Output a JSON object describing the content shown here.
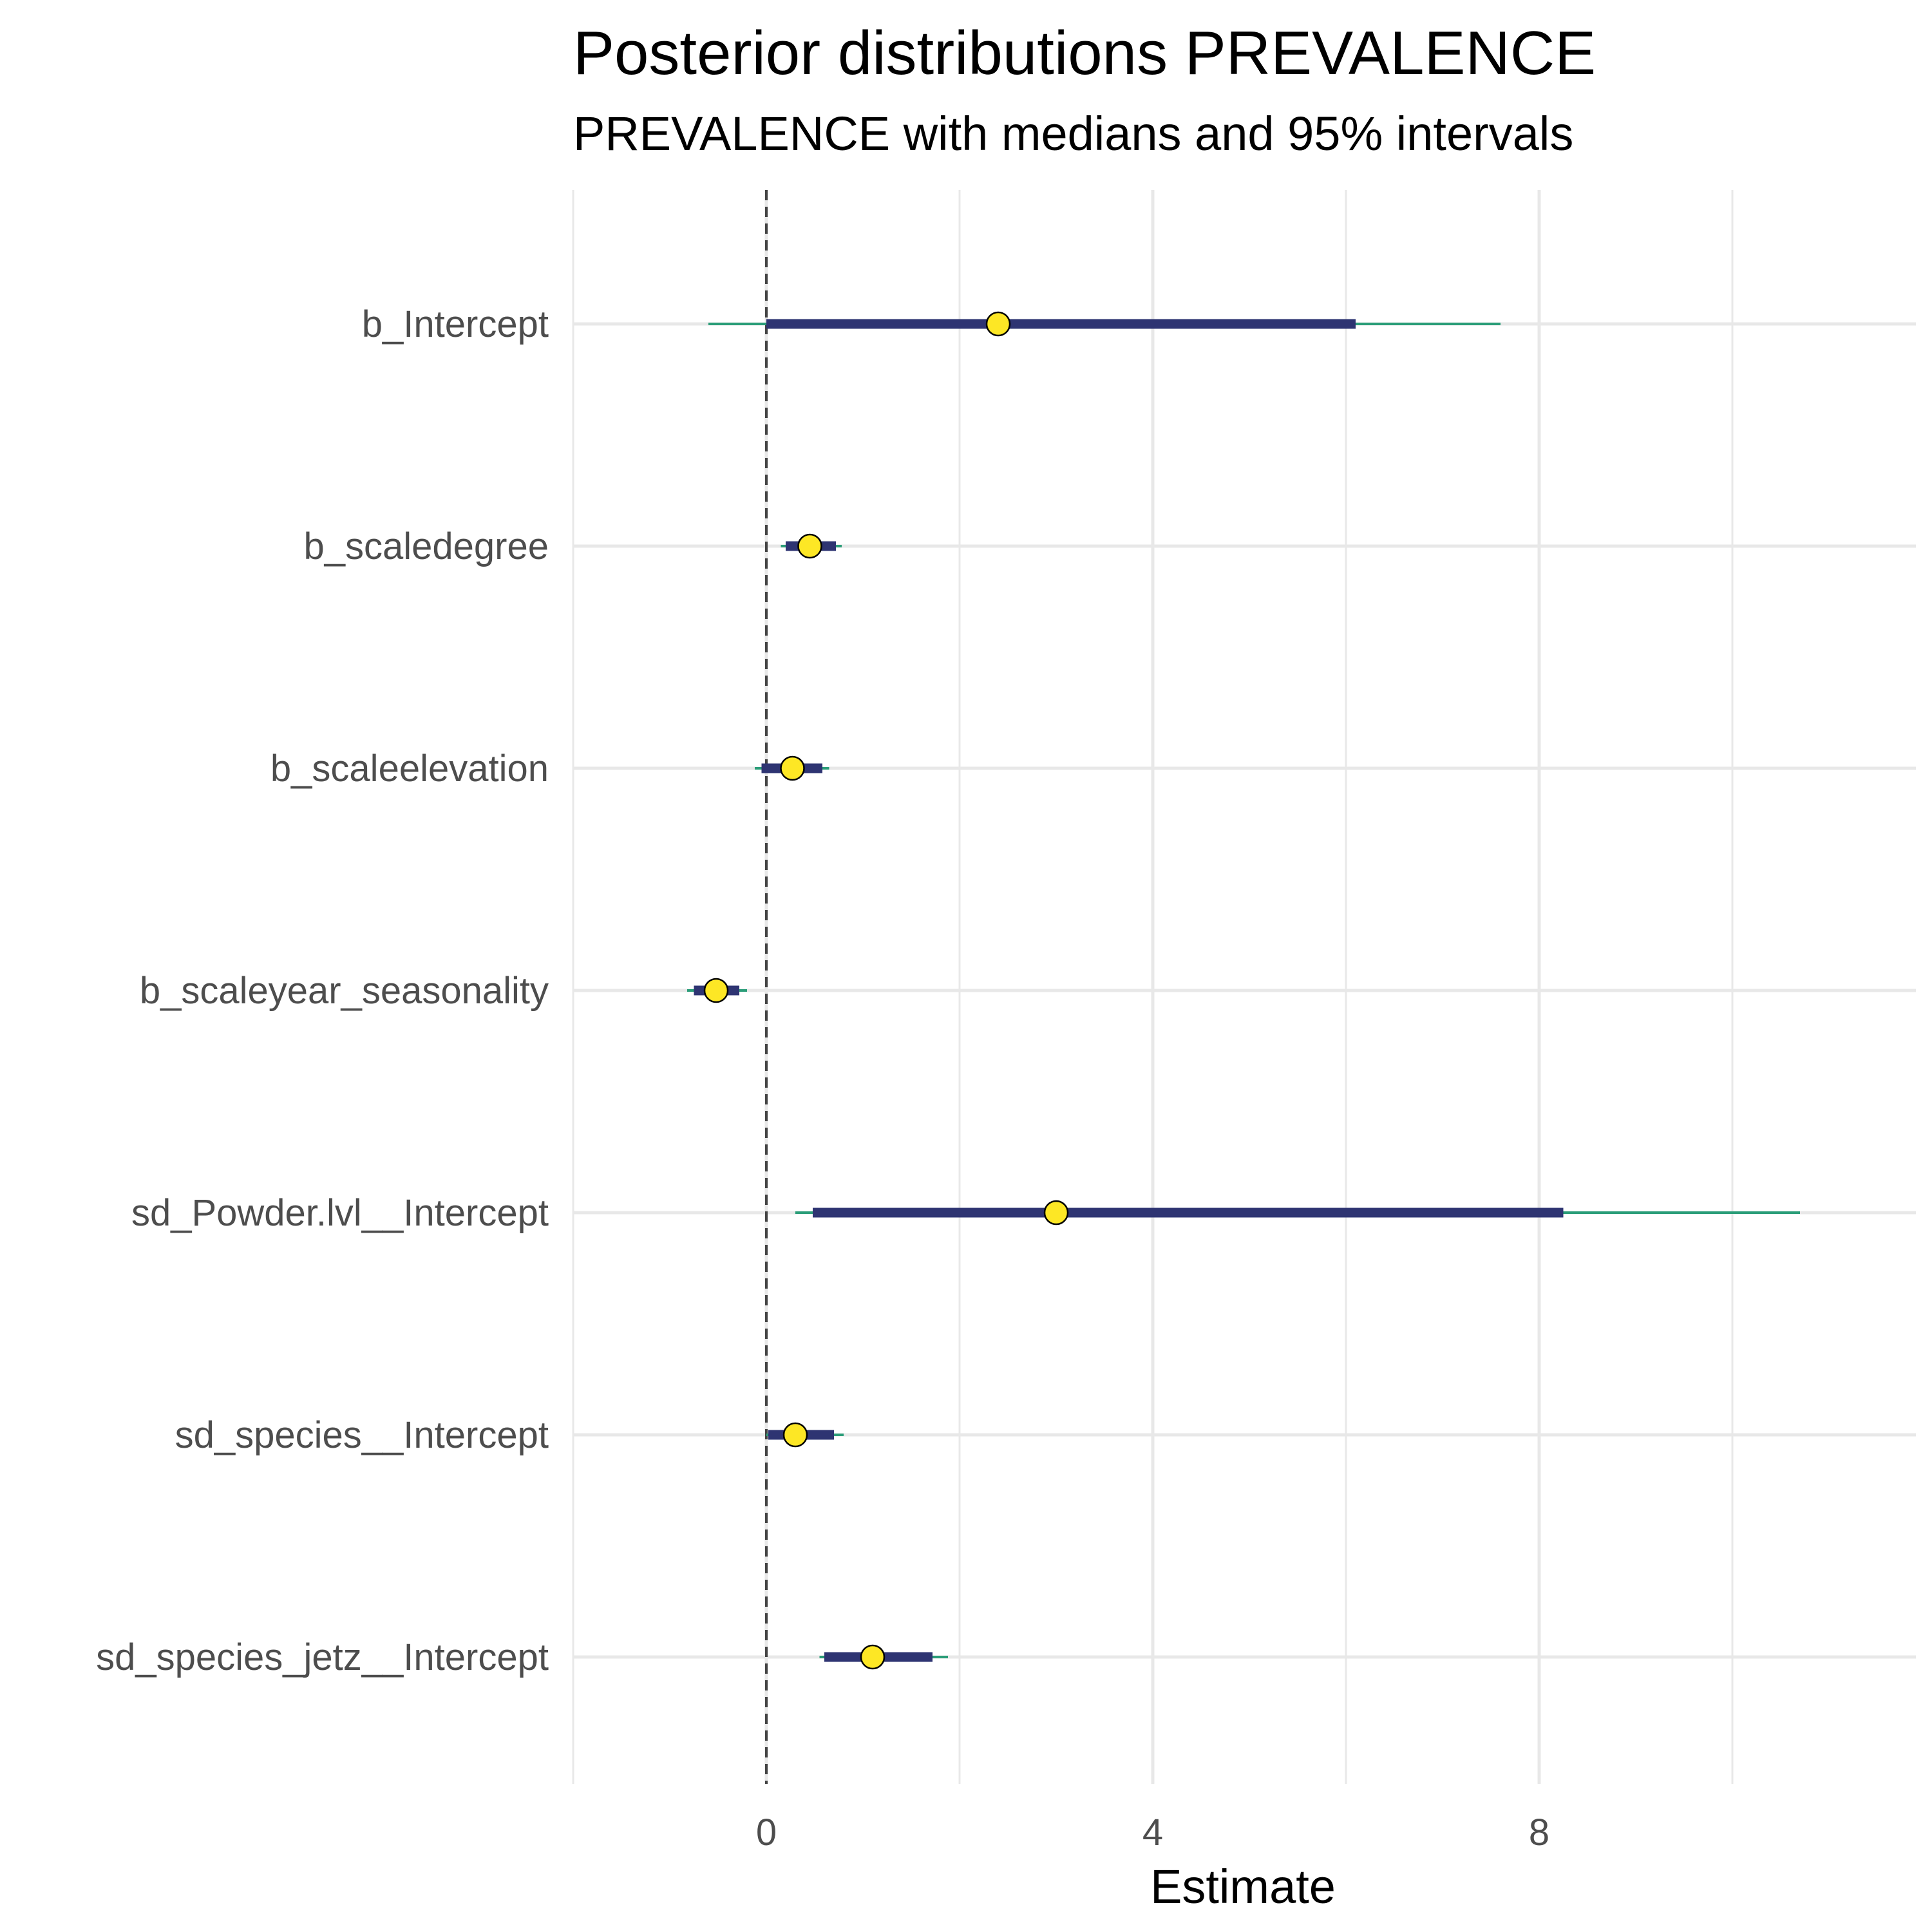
{
  "chart_data": {
    "type": "interval",
    "title": "Posterior distributions PREVALENCE",
    "subtitle": "PREVALENCE with medians and 95% intervals",
    "xlabel": "Estimate",
    "ylabel": "",
    "xlim": [
      -2,
      11.9
    ],
    "xticks": [
      0,
      4,
      8
    ],
    "reference_line": 0,
    "grid": true,
    "colors": {
      "outer_interval": "#2a9d78",
      "inner_interval": "#2e3472",
      "point_fill": "#fde725",
      "point_stroke": "#000000",
      "grid": "#e8e8e8",
      "reference_line": "#444444"
    },
    "parameters": [
      {
        "name": "b_Intercept",
        "median": 2.4,
        "inner": [
          0.0,
          6.1
        ],
        "outer": [
          -0.6,
          7.6
        ]
      },
      {
        "name": "b_scaledegree",
        "median": 0.45,
        "inner": [
          0.2,
          0.72
        ],
        "outer": [
          0.15,
          0.78
        ]
      },
      {
        "name": "b_scaleelevation",
        "median": 0.27,
        "inner": [
          -0.05,
          0.58
        ],
        "outer": [
          -0.12,
          0.65
        ]
      },
      {
        "name": "b_scaleyear_seasonality",
        "median": -0.52,
        "inner": [
          -0.75,
          -0.28
        ],
        "outer": [
          -0.82,
          -0.2
        ]
      },
      {
        "name": "sd_Powder.lvl__Intercept",
        "median": 3.0,
        "inner": [
          0.48,
          8.25
        ],
        "outer": [
          0.3,
          10.7
        ]
      },
      {
        "name": "sd_species__Intercept",
        "median": 0.3,
        "inner": [
          0.02,
          0.7
        ],
        "outer": [
          0.0,
          0.8
        ]
      },
      {
        "name": "sd_species_jetz__Intercept",
        "median": 1.1,
        "inner": [
          0.6,
          1.72
        ],
        "outer": [
          0.55,
          1.88
        ]
      }
    ]
  }
}
